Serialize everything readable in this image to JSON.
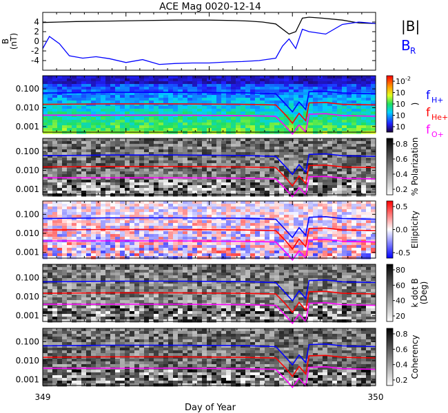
{
  "chart_data": {
    "type": "line",
    "title": "ACE Mag 0020-12-14",
    "xlabel": "Day of Year",
    "x_range": [
      349,
      350
    ],
    "x_ticks": [
      "349",
      "350"
    ],
    "panels": [
      {
        "kind": "line",
        "ylabel": "B\n(nT)",
        "ylim": [
          -6,
          6
        ],
        "y_ticks": [
          "4",
          "2",
          "0",
          "-2",
          "-4"
        ],
        "y_tick_values": [
          4,
          2,
          0,
          -2,
          -4
        ],
        "legend": [
          "|B|",
          "B"
        ],
        "legend_sub": [
          "",
          "R"
        ],
        "series": [
          {
            "name": "|B|",
            "color": "#000000",
            "x": [
              349.0,
              349.05,
              349.1,
              349.2,
              349.3,
              349.4,
              349.5,
              349.58,
              349.62,
              349.66,
              349.7,
              349.74,
              349.76,
              349.78,
              349.8,
              349.84,
              349.9,
              349.95,
              350.0
            ],
            "y": [
              3.9,
              4.0,
              4.1,
              4.2,
              4.3,
              4.4,
              4.4,
              4.3,
              4.2,
              4.0,
              3.6,
              1.5,
              2.0,
              4.8,
              5.0,
              4.8,
              4.4,
              3.8,
              3.7
            ]
          },
          {
            "name": "B_R",
            "color": "#0000ff",
            "x": [
              349.0,
              349.02,
              349.05,
              349.08,
              349.12,
              349.16,
              349.2,
              349.25,
              349.3,
              349.35,
              349.4,
              349.45,
              349.5,
              349.55,
              349.6,
              349.65,
              349.7,
              349.72,
              349.74,
              349.76,
              349.78,
              349.8,
              349.85,
              349.9,
              349.95,
              350.0
            ],
            "y": [
              -1.5,
              1.0,
              -0.5,
              -3.0,
              -3.5,
              -3.2,
              -3.6,
              -4.4,
              -3.8,
              -4.8,
              -4.6,
              -4.5,
              -4.5,
              -4.3,
              -4.2,
              -4.0,
              -3.5,
              -1.0,
              0.5,
              -1.5,
              2.5,
              2.0,
              1.5,
              3.5,
              4.0,
              3.7
            ]
          }
        ]
      },
      {
        "kind": "spectrogram",
        "ylabel": "",
        "ylim": [
          0.0005,
          0.5
        ],
        "y_ticks": [
          "0.100",
          "0.010",
          "0.001"
        ],
        "y_tick_values": [
          0.1,
          0.01,
          0.001
        ],
        "colorbar": {
          "scheme": "rainbow",
          "ticks": [
            "10",
            "10",
            "10",
            "10",
            "10"
          ],
          "sups": [
            "-2",
            "",
            "",
            "",
            ""
          ],
          "label": ")"
        },
        "legend": [
          "f",
          "f",
          "f"
        ],
        "legend_sub": [
          "H+",
          "He+",
          "O+"
        ],
        "legend_colors": [
          "#0000ff",
          "#ff0000",
          "#ff00ff"
        ]
      },
      {
        "kind": "spectrogram",
        "ylabel": "",
        "ylim": [
          0.0005,
          0.5
        ],
        "y_ticks": [
          "0.100",
          "0.010",
          "0.001"
        ],
        "y_tick_values": [
          0.1,
          0.01,
          0.001
        ],
        "colorbar": {
          "scheme": "gray",
          "ticks": [
            "0.8",
            "0.6",
            "0.4",
            "0.2"
          ],
          "label": "% Polarization"
        }
      },
      {
        "kind": "spectrogram",
        "ylabel": "",
        "ylim": [
          0.0005,
          0.5
        ],
        "y_ticks": [
          "0.100",
          "0.010",
          "0.001"
        ],
        "y_tick_values": [
          0.1,
          0.01,
          0.001
        ],
        "colorbar": {
          "scheme": "bwr",
          "ticks": [
            "0.5",
            "0.0",
            "-0.5"
          ],
          "label": "Ellipticity"
        }
      },
      {
        "kind": "spectrogram",
        "ylabel": "",
        "ylim": [
          0.0005,
          0.5
        ],
        "y_ticks": [
          "0.100",
          "0.010",
          "0.001"
        ],
        "y_tick_values": [
          0.1,
          0.01,
          0.001
        ],
        "colorbar": {
          "scheme": "gray",
          "ticks": [
            "80",
            "60",
            "40",
            "20"
          ],
          "label": "k dot B\n(Deg)"
        }
      },
      {
        "kind": "spectrogram",
        "ylabel": "",
        "ylim": [
          0.0005,
          0.5
        ],
        "y_ticks": [
          "0.100",
          "0.010",
          "0.001"
        ],
        "y_tick_values": [
          0.1,
          0.01,
          0.001
        ],
        "colorbar": {
          "scheme": "gray",
          "ticks": [
            "0.8",
            "0.6",
            "0.4",
            "0.2"
          ],
          "label": "Coherency"
        }
      }
    ],
    "gyrofrequency_lines": [
      {
        "name": "f_H+",
        "color": "#0000ff",
        "x": [
          349.0,
          349.2,
          349.4,
          349.6,
          349.7,
          349.73,
          349.75,
          349.77,
          349.79,
          349.8,
          349.85,
          349.9,
          350.0
        ],
        "y": [
          0.06,
          0.065,
          0.065,
          0.062,
          0.055,
          0.015,
          0.006,
          0.02,
          0.008,
          0.07,
          0.075,
          0.06,
          0.055
        ]
      },
      {
        "name": "f_He+",
        "color": "#ff0000",
        "x": [
          349.0,
          349.2,
          349.4,
          349.6,
          349.7,
          349.73,
          349.75,
          349.77,
          349.79,
          349.8,
          349.85,
          349.9,
          350.0
        ],
        "y": [
          0.015,
          0.016,
          0.016,
          0.015,
          0.014,
          0.004,
          0.0015,
          0.005,
          0.002,
          0.018,
          0.019,
          0.015,
          0.014
        ]
      },
      {
        "name": "f_O+",
        "color": "#ff00ff",
        "x": [
          349.0,
          349.2,
          349.4,
          349.6,
          349.7,
          349.73,
          349.75,
          349.77,
          349.79,
          349.8,
          349.85,
          349.9,
          350.0
        ],
        "y": [
          0.004,
          0.004,
          0.004,
          0.0038,
          0.0035,
          0.001,
          0.0004,
          0.0012,
          0.0005,
          0.0045,
          0.0048,
          0.0038,
          0.0035
        ]
      }
    ]
  }
}
